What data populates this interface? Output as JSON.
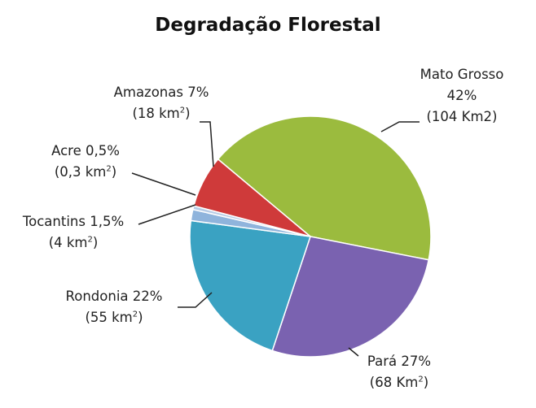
{
  "chart_data": {
    "type": "pie",
    "title": "Degradação Florestal",
    "slices": [
      {
        "name": "Mato Grosso",
        "value": 42,
        "pct": "42%",
        "area": "(104 Km2)",
        "color": "#9bbb3e"
      },
      {
        "name": "Pará",
        "value": 27,
        "pct": "27%",
        "area": "(68 Km",
        "area_sup": "2",
        "area_end": ")",
        "color": "#7a62b0"
      },
      {
        "name": "Rondonia",
        "value": 22,
        "pct": "22%",
        "area": "(55 km",
        "area_sup": "2",
        "area_end": ")",
        "color": "#3aa2c2"
      },
      {
        "name": "Tocantins",
        "value": 1.5,
        "pct": "1,5%",
        "area": "(4 km",
        "area_sup": "2",
        "area_end": ")",
        "color": "#8fb4dc"
      },
      {
        "name": "Acre",
        "value": 0.5,
        "pct": "0,5%",
        "area": "(0,3 km",
        "area_sup": "2",
        "area_end": ")",
        "color": "#b7cce6"
      },
      {
        "name": "Amazonas",
        "value": 7,
        "pct": "7%",
        "area": "(18 km",
        "area_sup": "2",
        "area_end": ")",
        "color": "#cf3a3a"
      }
    ]
  }
}
